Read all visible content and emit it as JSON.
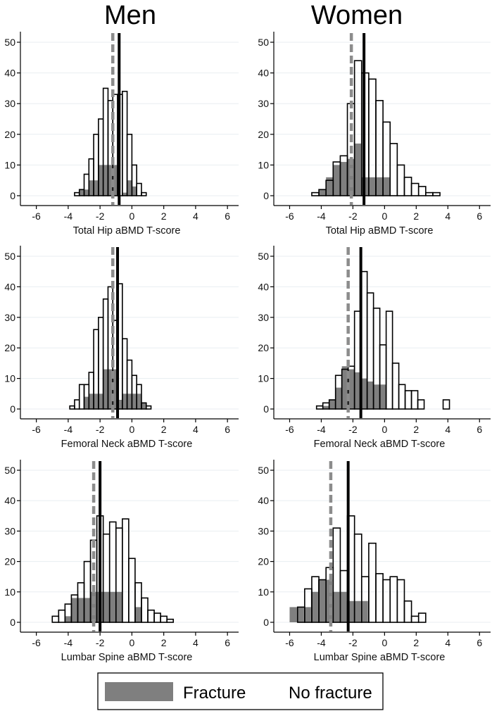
{
  "colors": {
    "fracture_fill": "#7f7f7f",
    "fracture_line": "#8c8c8c",
    "nofracture_line": "#000000",
    "grid": "#e8eef1",
    "axis": "#000000"
  },
  "legend": {
    "fracture": "Fracture",
    "no_fracture": "No fracture"
  },
  "column_titles": [
    "Men",
    "Women"
  ],
  "chart_data": [
    {
      "type": "bar",
      "sex": "Men",
      "title": "Men",
      "xlabel": "Total Hip aBMD T-score",
      "ylabel": "",
      "xlim": [
        -7,
        6.7
      ],
      "ylim": [
        0,
        52
      ],
      "xticks": [
        -6,
        -4,
        -2,
        0,
        2,
        4,
        6
      ],
      "yticks": [
        0,
        10,
        20,
        30,
        40,
        50
      ],
      "bin_width": 0.3,
      "series": [
        {
          "name": "No fracture",
          "start": -3.6,
          "values": [
            1,
            2,
            7,
            12,
            20,
            25,
            35,
            31,
            33,
            33,
            34,
            20,
            10,
            4,
            1
          ]
        },
        {
          "name": "Fracture",
          "start": -3.3,
          "values": [
            2,
            2,
            5,
            5,
            10,
            10,
            10,
            10,
            0,
            1,
            5,
            3
          ]
        }
      ],
      "fracture_mean": -1.2,
      "nofracture_mean": -0.8
    },
    {
      "type": "bar",
      "sex": "Women",
      "title": "Women",
      "xlabel": "Total Hip aBMD T-score",
      "ylabel": "",
      "xlim": [
        -7,
        6.7
      ],
      "ylim": [
        0,
        52
      ],
      "xticks": [
        -6,
        -4,
        -2,
        0,
        2,
        4,
        6
      ],
      "yticks": [
        0,
        10,
        20,
        30,
        40,
        50
      ],
      "bin_width": 0.45,
      "series": [
        {
          "name": "No fracture",
          "start": -4.6,
          "values": [
            1,
            2,
            5,
            11,
            13,
            30,
            44,
            40,
            38,
            31,
            24,
            17,
            10,
            6,
            4,
            3,
            1,
            1
          ]
        },
        {
          "name": "Fracture",
          "start": -4.15,
          "values": [
            2,
            6,
            10,
            11,
            12,
            17,
            6,
            6,
            6,
            6
          ]
        }
      ],
      "fracture_mean": -2.1,
      "nofracture_mean": -1.3
    },
    {
      "type": "bar",
      "sex": "Men",
      "title": "Men",
      "xlabel": "Femoral Neck aBMD T-score",
      "ylabel": "",
      "xlim": [
        -7,
        6.7
      ],
      "ylim": [
        0,
        52
      ],
      "xticks": [
        -6,
        -4,
        -2,
        0,
        2,
        4,
        6
      ],
      "yticks": [
        0,
        10,
        20,
        30,
        40,
        50
      ],
      "bin_width": 0.3,
      "series": [
        {
          "name": "No fracture",
          "start": -3.9,
          "values": [
            1,
            3,
            8,
            8,
            12,
            26,
            30,
            36,
            40,
            29,
            41,
            23,
            16,
            11,
            8,
            2,
            1
          ]
        },
        {
          "name": "Fracture",
          "start": -3.0,
          "values": [
            4,
            5,
            5,
            5,
            13,
            13,
            13,
            3,
            5,
            5,
            5,
            5,
            2
          ]
        }
      ],
      "fracture_mean": -1.2,
      "nofracture_mean": -0.9
    },
    {
      "type": "bar",
      "sex": "Women",
      "title": "Women",
      "xlabel": "Femoral Neck aBMD T-score",
      "ylabel": "",
      "xlim": [
        -7,
        6.7
      ],
      "ylim": [
        0,
        52
      ],
      "xticks": [
        -6,
        -4,
        -2,
        0,
        2,
        4,
        6
      ],
      "yticks": [
        0,
        10,
        20,
        30,
        40,
        50
      ],
      "bin_width": 0.4,
      "series": [
        {
          "name": "No fracture",
          "start": -4.3,
          "values": [
            1,
            2,
            3,
            11,
            13,
            14,
            32,
            45,
            38,
            33,
            21,
            32,
            15,
            8,
            6,
            6,
            3,
            0,
            0,
            0,
            3
          ]
        },
        {
          "name": "Fracture",
          "start": -3.9,
          "values": [
            1,
            3,
            7,
            14,
            13,
            12,
            10,
            9,
            8,
            8
          ]
        }
      ],
      "fracture_mean": -2.3,
      "nofracture_mean": -1.5
    },
    {
      "type": "bar",
      "sex": "Men",
      "title": "Men",
      "xlabel": "Lumbar Spine aBMD T-score",
      "ylabel": "",
      "xlim": [
        -7,
        6.7
      ],
      "ylim": [
        0,
        52
      ],
      "xticks": [
        -6,
        -4,
        -2,
        0,
        2,
        4,
        6
      ],
      "yticks": [
        0,
        10,
        20,
        30,
        40,
        50
      ],
      "bin_width": 0.4,
      "series": [
        {
          "name": "No fracture",
          "start": -5.0,
          "values": [
            2,
            4,
            6,
            9,
            13,
            20,
            27,
            35,
            29,
            33,
            31,
            34,
            21,
            13,
            8,
            4,
            3,
            2,
            1
          ]
        },
        {
          "name": "Fracture",
          "start": -4.2,
          "values": [
            2,
            8,
            8,
            8,
            10,
            10,
            10,
            10,
            10,
            0,
            0,
            5
          ]
        }
      ],
      "fracture_mean": -2.4,
      "nofracture_mean": -2.0
    },
    {
      "type": "bar",
      "sex": "Women",
      "title": "Women",
      "xlabel": "Lumbar Spine aBMD T-score",
      "ylabel": "",
      "xlim": [
        -7,
        6.7
      ],
      "ylim": [
        0,
        52
      ],
      "xticks": [
        -6,
        -4,
        -2,
        0,
        2,
        4,
        6
      ],
      "yticks": [
        0,
        10,
        20,
        30,
        40,
        50
      ],
      "bin_width": 0.45,
      "series": [
        {
          "name": "No fracture",
          "start": -5.5,
          "values": [
            5,
            11,
            15,
            14,
            18,
            31,
            17,
            35,
            29,
            15,
            26,
            16,
            14,
            15,
            14,
            7,
            2,
            3
          ]
        },
        {
          "name": "Fracture",
          "start": -6.0,
          "values": [
            5,
            5,
            5,
            10,
            14,
            14,
            10,
            10,
            7,
            7,
            7
          ]
        }
      ],
      "fracture_mean": -3.4,
      "nofracture_mean": -2.3
    }
  ]
}
